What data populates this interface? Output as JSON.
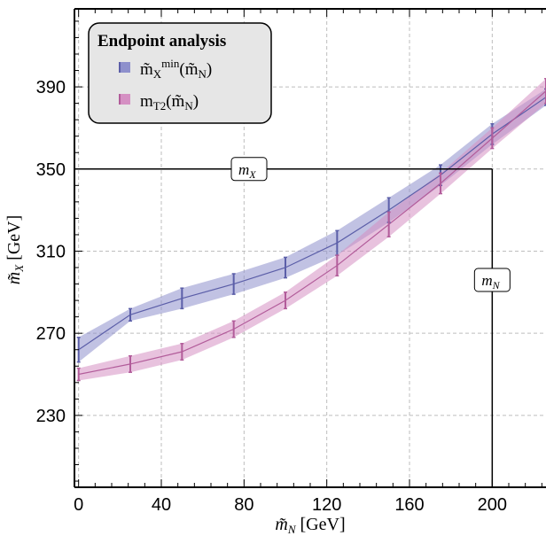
{
  "chart_data": {
    "type": "line",
    "xlabel": "m̃_N [GeV]",
    "ylabel": "m̃_X [GeV]",
    "xlim": [
      -2,
      226
    ],
    "ylim": [
      195,
      428
    ],
    "x_ticks": [
      0,
      40,
      80,
      120,
      160,
      200
    ],
    "x_tick_labels": [
      "0",
      "40",
      "80",
      "120",
      "160",
      "200"
    ],
    "y_ticks": [
      230,
      270,
      310,
      350,
      390
    ],
    "y_tick_labels": [
      "230",
      "270",
      "310",
      "350",
      "390"
    ],
    "grid": true,
    "legend": {
      "title": "Endpoint analysis",
      "placement": "top-left",
      "entries": [
        "m̃_X^min(m̃_N)",
        "m_T2(m̃_N)"
      ]
    },
    "series": [
      {
        "name": "m̃_X^min(m̃_N)",
        "color": "#5b5ea8",
        "band_color": "#8e90cc",
        "x": [
          0,
          25,
          50,
          75,
          100,
          125,
          150,
          175,
          200,
          226
        ],
        "y": [
          262,
          279,
          287,
          294,
          302,
          314,
          330,
          347,
          367,
          385
        ],
        "err": [
          6,
          3,
          5,
          5,
          5,
          6,
          6,
          5,
          5,
          4
        ]
      },
      {
        "name": "m_T2(m̃_N)",
        "color": "#b25c9a",
        "band_color": "#d590c3",
        "x": [
          0,
          25,
          50,
          75,
          100,
          125,
          150,
          175,
          200,
          226
        ],
        "y": [
          250,
          255,
          261,
          272,
          286,
          303,
          323,
          343,
          365,
          388
        ],
        "err": [
          3,
          4,
          4,
          4,
          4,
          5,
          6,
          5,
          5,
          6
        ]
      }
    ],
    "annotations": [
      {
        "label": "m_X",
        "type": "hline",
        "y": 350,
        "x_from": -2,
        "x_to": 200
      },
      {
        "label": "m_N",
        "type": "vline",
        "x": 200,
        "y_from": 195,
        "y_to": 350
      }
    ]
  }
}
